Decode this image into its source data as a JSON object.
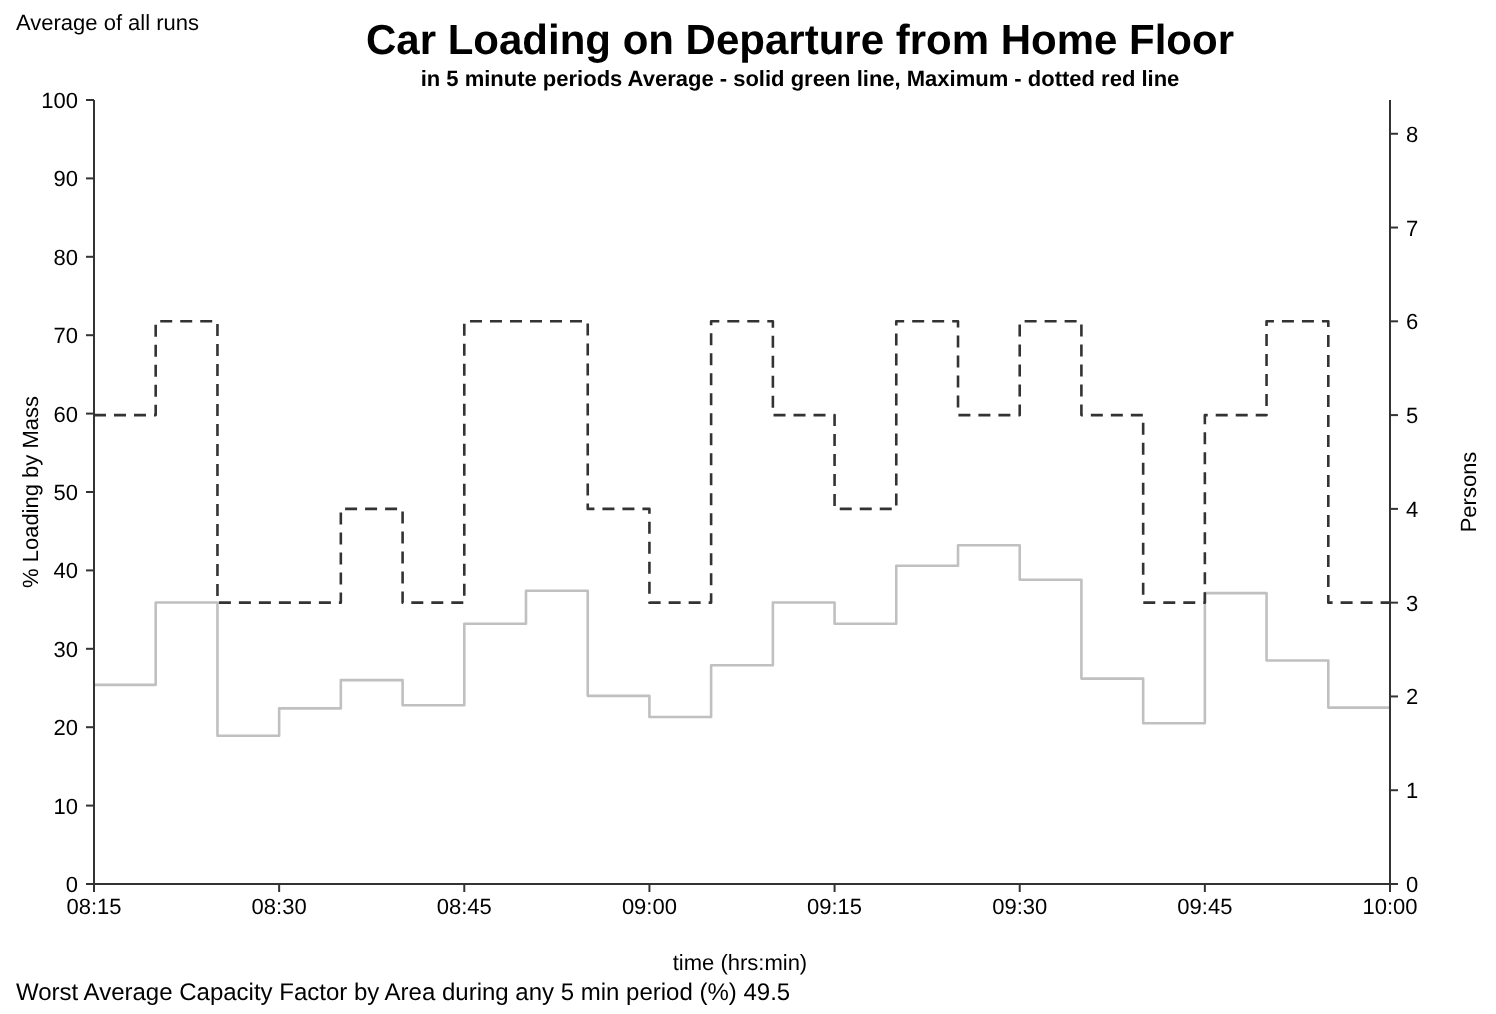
{
  "chart_data": {
    "type": "step",
    "title": "Car Loading on Departure from Home Floor",
    "subtitle": "in 5 minute periods  Average - solid green line,  Maximum -  dotted red line",
    "xlabel": "time (hrs:min)",
    "ylabel": "% Loading by Mass",
    "y2label": "Persons",
    "annotations": [
      "Average of all runs",
      "Worst Average Capacity Factor by Area during any 5 min period (%)   49.5"
    ],
    "x": [
      8.25,
      8.3333,
      8.4167,
      8.5,
      8.5833,
      8.6667,
      8.75,
      8.8333,
      8.9167,
      9,
      9.0833,
      9.1667,
      9.25,
      9.3333,
      9.4167,
      9.5,
      9.5833,
      9.6667,
      9.75,
      9.8333,
      9.9167,
      10
    ],
    "series": [
      {
        "color": "#c0c0c0",
        "line_style": "solid",
        "values": [
          25.4,
          35.9,
          18.9,
          22.4,
          26,
          22.8,
          33.2,
          37.4,
          24,
          21.3,
          27.9,
          35.9,
          33.2,
          40.6,
          43.2,
          38.8,
          26.2,
          20.5,
          37.1,
          28.5,
          22.5,
          22.5
        ]
      },
      {
        "color": "#333333",
        "line_style": "dashed",
        "axis": "y2",
        "values": [
          5,
          6,
          3,
          3,
          4,
          3,
          6,
          6,
          4,
          3,
          6,
          5,
          4,
          6,
          5,
          6,
          5,
          3,
          5,
          6,
          3,
          3
        ]
      }
    ],
    "xlim": [
      8.25,
      10
    ],
    "xticks": [
      {
        "value": 8.25,
        "label": "08:15"
      },
      {
        "value": 8.5,
        "label": "08:30"
      },
      {
        "value": 8.75,
        "label": "08:45"
      },
      {
        "value": 9,
        "label": "09:00"
      },
      {
        "value": 9.25,
        "label": "09:15"
      },
      {
        "value": 9.5,
        "label": "09:30"
      },
      {
        "value": 9.75,
        "label": "09:45"
      },
      {
        "value": 10,
        "label": "10:00"
      }
    ],
    "ylim": [
      0,
      100
    ],
    "yticks": [
      0,
      10,
      20,
      30,
      40,
      50,
      60,
      70,
      80,
      90,
      100
    ],
    "y2lim": [
      0,
      8.36
    ],
    "y2ticks": [
      0,
      1,
      2,
      3,
      4,
      5,
      6,
      7,
      8
    ]
  }
}
